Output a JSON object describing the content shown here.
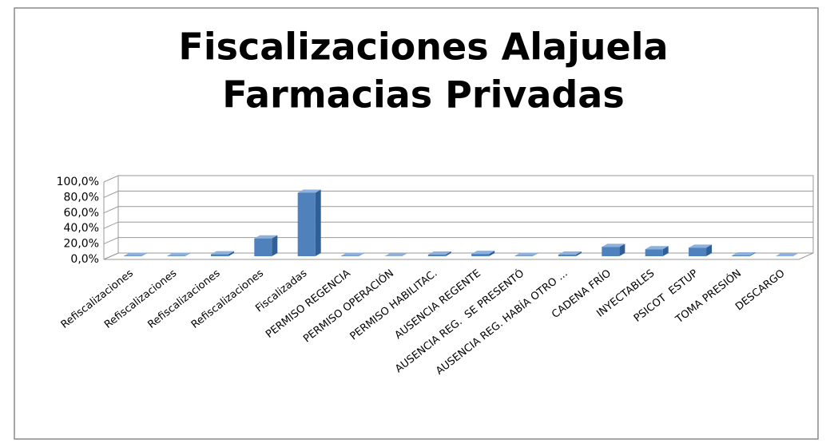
{
  "chart_data": {
    "type": "bar3d",
    "title": [
      "Fiscalizaciones Alajuela",
      "Farmacias Privadas"
    ],
    "categories": [
      "Refiscalizaciones",
      "Refiscalizaciones",
      "Refiscalizaciones",
      "Refiscalizaciones",
      "Fiscalizadas",
      "PERMISO REGENCIA",
      "PERMISO OPERACIÓN",
      "PERMISO HABILITAC.",
      "AUSENCIA REGENTE",
      "AUSENCIA REG.  SE PRESENTÓ",
      "AUSENCIA REG. HABÍA OTRO ...",
      "CADENA FRÍO",
      "INYECTABLES",
      "PSICOT  ESTUP",
      "TOMA PRESIÓN",
      "DESCARGO"
    ],
    "values": [
      0.5,
      0.5,
      2.5,
      23,
      82,
      0.5,
      0,
      2,
      3,
      0.5,
      2,
      12,
      9,
      11,
      1,
      0
    ],
    "color": "#4f81bd",
    "ylim": [
      0,
      100
    ],
    "yticks": [
      {
        "value": 0,
        "label": "0,0%"
      },
      {
        "value": 20,
        "label": "20,0%"
      },
      {
        "value": 40,
        "label": "40,0%"
      },
      {
        "value": 60,
        "label": "60,0%"
      },
      {
        "value": 80,
        "label": "80,0%"
      },
      {
        "value": 100,
        "label": "100,0%"
      }
    ],
    "grid": true
  }
}
